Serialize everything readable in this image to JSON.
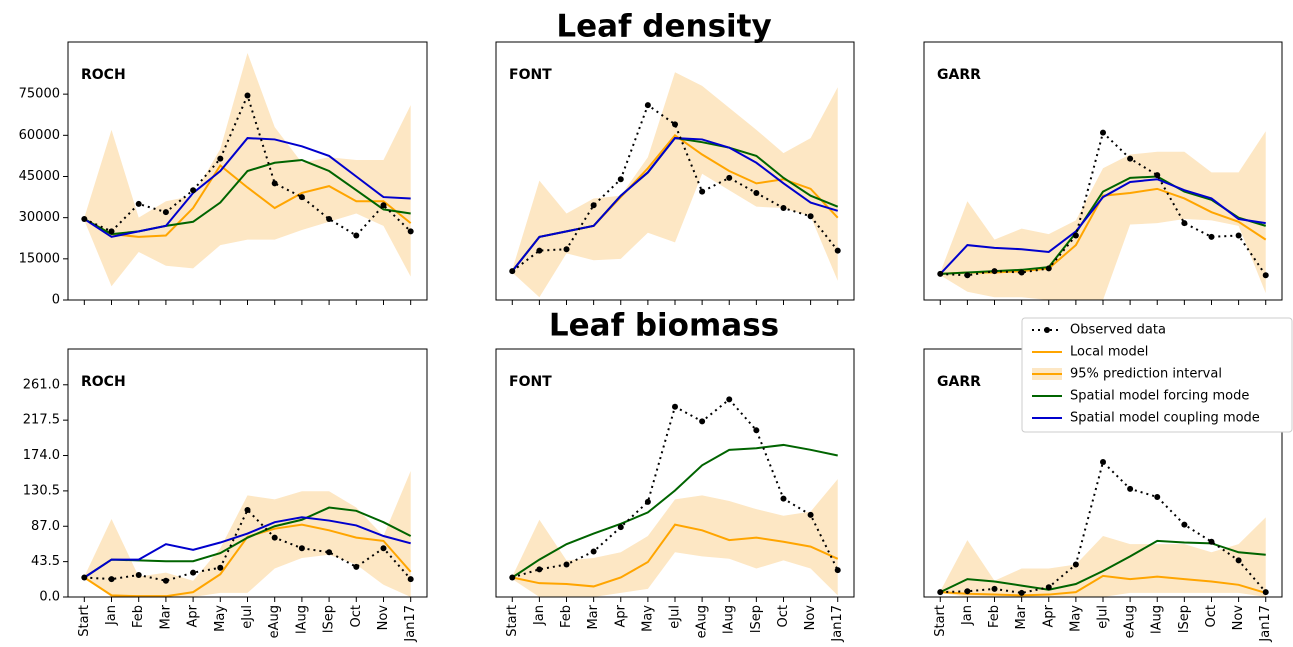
{
  "headings": [
    "Leaf density",
    "Leaf biomass"
  ],
  "chart_data": [
    {
      "type": "line",
      "title": "ROCH",
      "categories": [
        null,
        null,
        null,
        null,
        null,
        null,
        null,
        null,
        null,
        null,
        null,
        null,
        null
      ],
      "ylim": [
        0,
        94000
      ],
      "yticks": [
        0,
        15000,
        30000,
        45000,
        60000,
        75000
      ],
      "series": [
        {
          "name": "Observed data",
          "color": "#000000",
          "linestyle": "dotted",
          "marker": "o",
          "values": [
            29500,
            25000,
            35000,
            32000,
            40000,
            51500,
            74500,
            42500,
            37500,
            29500,
            23500,
            34500,
            25000
          ]
        },
        {
          "name": "Local model",
          "color": "#ffa500",
          "values": [
            29500,
            24000,
            23000,
            23500,
            33500,
            49000,
            41000,
            33500,
            39000,
            41500,
            36000,
            36000,
            28000
          ]
        },
        {
          "name": "95% prediction interval",
          "color": "#fde7c4",
          "lower": [
            29000,
            5000,
            17500,
            12500,
            11500,
            20000,
            22000,
            22000,
            25500,
            28500,
            31500,
            27000,
            8500
          ],
          "upper": [
            30000,
            62000,
            30000,
            36000,
            38000,
            55000,
            90000,
            63000,
            50000,
            52000,
            51000,
            51000,
            71000
          ]
        },
        {
          "name": "Spatial model forcing mode",
          "color": "#006400",
          "values": [
            29500,
            24000,
            25000,
            27000,
            28500,
            35500,
            47000,
            50000,
            51000,
            47000,
            40000,
            33000,
            31500
          ]
        },
        {
          "name": "Spatial model coupling mode",
          "color": "#0000cd",
          "values": [
            29500,
            23000,
            25000,
            27000,
            39000,
            47000,
            59000,
            58500,
            56000,
            52500,
            45000,
            37500,
            37000
          ]
        }
      ]
    },
    {
      "type": "line",
      "title": "FONT",
      "categories": [
        null,
        null,
        null,
        null,
        null,
        null,
        null,
        null,
        null,
        null,
        null,
        null,
        null
      ],
      "ylim": [
        0,
        94000
      ],
      "series": [
        {
          "name": "Observed data",
          "color": "#000000",
          "linestyle": "dotted",
          "marker": "o",
          "values": [
            10500,
            18000,
            18500,
            34500,
            44000,
            71000,
            64000,
            39500,
            44500,
            39000,
            33500,
            30500,
            18000
          ]
        },
        {
          "name": "Local model",
          "color": "#ffa500",
          "values": [
            10500,
            23000,
            25000,
            27000,
            37500,
            48000,
            60000,
            53000,
            47000,
            42500,
            44000,
            40500,
            30000
          ]
        },
        {
          "name": "95% prediction interval",
          "color": "#fde7c4",
          "lower": [
            10000,
            1000,
            17000,
            14500,
            15000,
            24500,
            21000,
            46000,
            40000,
            34000,
            33500,
            30500,
            7000
          ],
          "upper": [
            11000,
            43500,
            31500,
            37000,
            38000,
            52000,
            83000,
            78000,
            70000,
            62000,
            53500,
            59000,
            77500
          ]
        },
        {
          "name": "Spatial model forcing mode",
          "color": "#006400",
          "values": [
            10500,
            23000,
            25000,
            27000,
            38000,
            46500,
            59000,
            57500,
            55500,
            52500,
            44500,
            38000,
            34000
          ]
        },
        {
          "name": "Spatial model coupling mode",
          "color": "#0000cd",
          "values": [
            10500,
            23000,
            25000,
            27000,
            38000,
            46500,
            59000,
            58500,
            55500,
            50000,
            42500,
            35500,
            32500
          ]
        }
      ]
    },
    {
      "type": "line",
      "title": "GARR",
      "categories": [
        null,
        null,
        null,
        null,
        null,
        null,
        null,
        null,
        null,
        null,
        null,
        null,
        null
      ],
      "ylim": [
        0,
        94000
      ],
      "series": [
        {
          "name": "Observed data",
          "color": "#000000",
          "linestyle": "dotted",
          "marker": "o",
          "values": [
            9500,
            9000,
            10500,
            10000,
            11500,
            23500,
            61000,
            51500,
            45500,
            28000,
            23000,
            23500,
            9000
          ]
        },
        {
          "name": "Local model",
          "color": "#ffa500",
          "values": [
            9500,
            10000,
            10000,
            10500,
            11500,
            20000,
            38000,
            39000,
            40500,
            37000,
            32000,
            28500,
            22000
          ]
        },
        {
          "name": "95% prediction interval",
          "color": "#fde7c4",
          "lower": [
            9000,
            3000,
            1000,
            1000,
            0,
            0,
            0,
            27500,
            28000,
            29500,
            29000,
            27000,
            2500
          ],
          "upper": [
            10000,
            36000,
            22000,
            26000,
            24000,
            29000,
            48000,
            53000,
            54000,
            54000,
            46500,
            46500,
            61500
          ]
        },
        {
          "name": "Spatial model forcing mode",
          "color": "#006400",
          "values": [
            9500,
            10000,
            10500,
            11000,
            12000,
            24500,
            39500,
            44500,
            45000,
            39500,
            36500,
            30000,
            27000
          ]
        },
        {
          "name": "Spatial model coupling mode",
          "color": "#0000cd",
          "values": [
            9500,
            20000,
            19000,
            18500,
            17500,
            25000,
            37500,
            43000,
            44000,
            40000,
            37000,
            29500,
            28000
          ]
        }
      ]
    },
    {
      "type": "line",
      "title": "ROCH",
      "categories": [
        "Start",
        "Jan",
        "Feb",
        "Mar",
        "Apr",
        "May",
        "eJul",
        "eAug",
        "lAug",
        "lSep",
        "Oct",
        "Nov",
        "Jan17"
      ],
      "ylim": [
        0,
        305
      ],
      "yticks": [
        {
          "value": 0,
          "label": "0.0"
        },
        43.5,
        {
          "value": 87,
          "label": "87.0"
        },
        130.5,
        {
          "value": 174,
          "label": "174.0"
        },
        217.5,
        {
          "value": 261,
          "label": "261.0"
        }
      ],
      "series": [
        {
          "name": "Observed data",
          "color": "#000000",
          "linestyle": "dotted",
          "marker": "o",
          "values": [
            24,
            22,
            27,
            20,
            30,
            36,
            107,
            73,
            60,
            55,
            37,
            60,
            22
          ]
        },
        {
          "name": "Local model",
          "color": "#ffa500",
          "values": [
            24,
            2,
            1,
            1,
            6,
            28,
            74,
            84,
            89,
            82,
            73,
            69,
            31
          ]
        },
        {
          "name": "95% prediction interval",
          "color": "#fde7c4",
          "lower": [
            24,
            0,
            0,
            0,
            0,
            5,
            5,
            35,
            48,
            52,
            40,
            15,
            0
          ],
          "upper": [
            25,
            96,
            25,
            30,
            20,
            60,
            125,
            120,
            130,
            130,
            110,
            75,
            155
          ]
        },
        {
          "name": "Spatial model forcing mode",
          "color": "#006400",
          "values": [
            24,
            46,
            45,
            44,
            44,
            54,
            73,
            87,
            95,
            110,
            106,
            92,
            75
          ]
        },
        {
          "name": "Spatial model coupling mode",
          "color": "#0000cd",
          "values": [
            24,
            46,
            46,
            65,
            58,
            67,
            78,
            92,
            98,
            94,
            88,
            75,
            66
          ]
        }
      ]
    },
    {
      "type": "line",
      "title": "FONT",
      "categories": [
        "Start",
        "Jan",
        "Feb",
        "Mar",
        "Apr",
        "May",
        "eJul",
        "eAug",
        "lAug",
        "lSep",
        "Oct",
        "Nov",
        "Jan17"
      ],
      "ylim": [
        0,
        305
      ],
      "series": [
        {
          "name": "Observed data",
          "color": "#000000",
          "linestyle": "dotted",
          "marker": "o",
          "values": [
            24,
            34,
            40,
            56,
            86,
            117,
            234,
            216,
            243,
            205,
            121,
            101,
            33
          ]
        },
        {
          "name": "Local model",
          "color": "#ffa500",
          "values": [
            24,
            17,
            16,
            13,
            24,
            43,
            89,
            82,
            70,
            73,
            68,
            62,
            47
          ]
        },
        {
          "name": "95% prediction interval",
          "color": "#fde7c4",
          "lower": [
            22,
            0,
            0,
            0,
            5,
            10,
            55,
            50,
            47,
            35,
            45,
            35,
            2
          ],
          "upper": [
            25,
            95,
            45,
            48,
            55,
            75,
            120,
            125,
            118,
            108,
            100,
            105,
            145
          ]
        },
        {
          "name": "Spatial model forcing mode",
          "color": "#006400",
          "values": [
            24,
            46,
            65,
            78,
            90,
            104,
            131,
            162,
            181,
            183,
            187,
            181,
            174
          ]
        }
      ]
    },
    {
      "type": "line",
      "title": "GARR",
      "categories": [
        "Start",
        "Jan",
        "Feb",
        "Mar",
        "Apr",
        "May",
        "eJul",
        "eAug",
        "lAug",
        "lSep",
        "Oct",
        "Nov",
        "Jan17"
      ],
      "ylim": [
        0,
        305
      ],
      "series": [
        {
          "name": "Observed data",
          "color": "#000000",
          "linestyle": "dotted",
          "marker": "o",
          "values": [
            6,
            7,
            10,
            5,
            12,
            40,
            166,
            133,
            123,
            89,
            68,
            45,
            6
          ]
        },
        {
          "name": "Local model",
          "color": "#ffa500",
          "values": [
            6,
            4,
            3,
            2,
            3,
            6,
            26,
            22,
            25,
            22,
            19,
            15,
            5
          ]
        },
        {
          "name": "95% prediction interval",
          "color": "#fde7c4",
          "lower": [
            5,
            0,
            0,
            0,
            0,
            0,
            0,
            5,
            5,
            5,
            5,
            5,
            0
          ],
          "upper": [
            7,
            70,
            20,
            35,
            35,
            40,
            75,
            65,
            65,
            65,
            55,
            65,
            98
          ]
        },
        {
          "name": "Spatial model forcing mode",
          "color": "#006400",
          "values": [
            6,
            22,
            19,
            14,
            9,
            16,
            32,
            50,
            69,
            67,
            66,
            55,
            52
          ]
        }
      ]
    }
  ]
}
